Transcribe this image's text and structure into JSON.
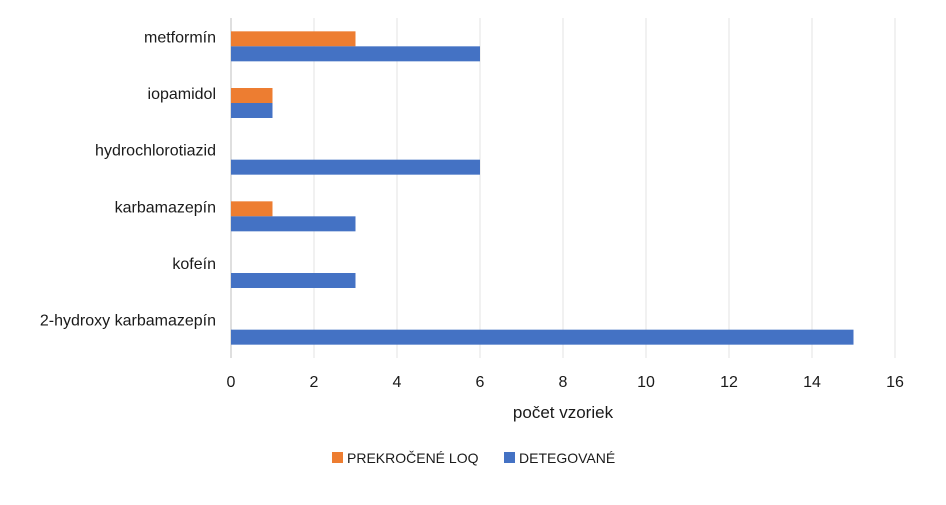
{
  "chart_data": {
    "type": "bar",
    "orientation": "horizontal",
    "categories": [
      "metformín",
      "iopamidol",
      "hydrochlorotiazid",
      "karbamazepín",
      "kofeín",
      "2-hydroxy karbamazepín"
    ],
    "series": [
      {
        "name": "PREKROČENÉ LOQ",
        "color": "#ED7D31",
        "values": [
          3,
          1,
          0,
          1,
          0,
          0
        ]
      },
      {
        "name": "DETEGOVANÉ",
        "color": "#4472C4",
        "values": [
          6,
          1,
          6,
          3,
          3,
          15
        ]
      }
    ],
    "title": "",
    "xlabel": "počet vzoriek",
    "ylabel": "",
    "xlim": [
      0,
      16
    ],
    "xticks": [
      0,
      2,
      4,
      6,
      8,
      10,
      12,
      14,
      16
    ],
    "grid": true,
    "legend_position": "bottom"
  }
}
